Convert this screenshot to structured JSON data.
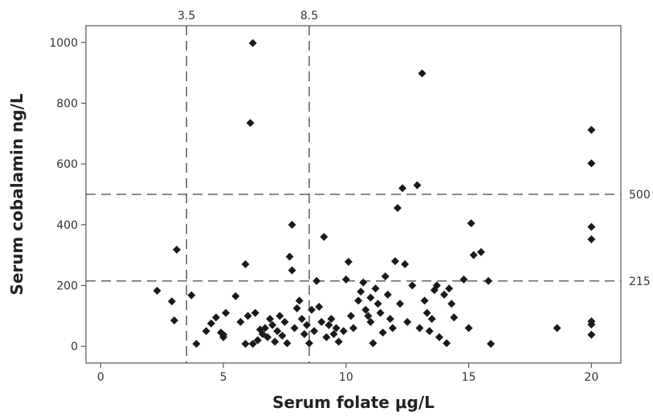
{
  "chart_data": {
    "type": "scatter",
    "title": "",
    "xlabel": "Serum folate μg/L",
    "ylabel": "Serum cobalamin ng/L",
    "xlim": [
      -0.6,
      21.2
    ],
    "ylim": [
      -55,
      1055
    ],
    "xticks": [
      0,
      5,
      10,
      15,
      20
    ],
    "yticks": [
      0,
      200,
      400,
      600,
      800,
      1000
    ],
    "xtick_labels": [
      "0",
      "5",
      "10",
      "15",
      "20"
    ],
    "ytick_labels": [
      "0",
      "200",
      "400",
      "600",
      "800",
      "1000"
    ],
    "reference_lines": {
      "vertical": [
        {
          "value": 3.5,
          "label": "3.5"
        },
        {
          "value": 8.5,
          "label": "8.5"
        }
      ],
      "horizontal": [
        {
          "value": 500,
          "label": "500"
        },
        {
          "value": 215,
          "label": "215"
        }
      ]
    },
    "grid": false,
    "marker": "diamond",
    "marker_color": "#1a1a1a",
    "points": [
      {
        "x": 2.3,
        "y": 183
      },
      {
        "x": 2.9,
        "y": 148
      },
      {
        "x": 3.0,
        "y": 85
      },
      {
        "x": 3.1,
        "y": 318
      },
      {
        "x": 3.7,
        "y": 168
      },
      {
        "x": 3.9,
        "y": 8
      },
      {
        "x": 4.3,
        "y": 50
      },
      {
        "x": 4.5,
        "y": 75
      },
      {
        "x": 4.7,
        "y": 95
      },
      {
        "x": 4.9,
        "y": 45
      },
      {
        "x": 5.0,
        "y": 30
      },
      {
        "x": 5.0,
        "y": 38
      },
      {
        "x": 5.1,
        "y": 110
      },
      {
        "x": 5.5,
        "y": 165
      },
      {
        "x": 5.7,
        "y": 80
      },
      {
        "x": 5.9,
        "y": 8
      },
      {
        "x": 5.9,
        "y": 270
      },
      {
        "x": 6.0,
        "y": 100
      },
      {
        "x": 6.1,
        "y": 735
      },
      {
        "x": 6.2,
        "y": 998
      },
      {
        "x": 6.2,
        "y": 8
      },
      {
        "x": 6.3,
        "y": 110
      },
      {
        "x": 6.4,
        "y": 20
      },
      {
        "x": 6.5,
        "y": 55
      },
      {
        "x": 6.6,
        "y": 40
      },
      {
        "x": 6.7,
        "y": 60
      },
      {
        "x": 6.8,
        "y": 30
      },
      {
        "x": 6.9,
        "y": 90
      },
      {
        "x": 7.0,
        "y": 70
      },
      {
        "x": 7.1,
        "y": 15
      },
      {
        "x": 7.2,
        "y": 50
      },
      {
        "x": 7.3,
        "y": 100
      },
      {
        "x": 7.4,
        "y": 35
      },
      {
        "x": 7.5,
        "y": 80
      },
      {
        "x": 7.6,
        "y": 10
      },
      {
        "x": 7.7,
        "y": 295
      },
      {
        "x": 7.8,
        "y": 400
      },
      {
        "x": 7.8,
        "y": 250
      },
      {
        "x": 7.9,
        "y": 60
      },
      {
        "x": 8.0,
        "y": 125
      },
      {
        "x": 8.1,
        "y": 150
      },
      {
        "x": 8.2,
        "y": 90
      },
      {
        "x": 8.3,
        "y": 40
      },
      {
        "x": 8.4,
        "y": 70
      },
      {
        "x": 8.5,
        "y": 10
      },
      {
        "x": 8.6,
        "y": 120
      },
      {
        "x": 8.7,
        "y": 50
      },
      {
        "x": 8.8,
        "y": 215
      },
      {
        "x": 8.9,
        "y": 130
      },
      {
        "x": 9.0,
        "y": 80
      },
      {
        "x": 9.1,
        "y": 360
      },
      {
        "x": 9.2,
        "y": 30
      },
      {
        "x": 9.3,
        "y": 70
      },
      {
        "x": 9.4,
        "y": 90
      },
      {
        "x": 9.5,
        "y": 40
      },
      {
        "x": 9.6,
        "y": 60
      },
      {
        "x": 9.7,
        "y": 15
      },
      {
        "x": 9.9,
        "y": 50
      },
      {
        "x": 10.0,
        "y": 220
      },
      {
        "x": 10.1,
        "y": 278
      },
      {
        "x": 10.2,
        "y": 100
      },
      {
        "x": 10.3,
        "y": 60
      },
      {
        "x": 10.5,
        "y": 150
      },
      {
        "x": 10.6,
        "y": 180
      },
      {
        "x": 10.7,
        "y": 210
      },
      {
        "x": 10.8,
        "y": 120
      },
      {
        "x": 10.9,
        "y": 100
      },
      {
        "x": 11.0,
        "y": 80
      },
      {
        "x": 11.0,
        "y": 160
      },
      {
        "x": 11.1,
        "y": 10
      },
      {
        "x": 11.2,
        "y": 190
      },
      {
        "x": 11.3,
        "y": 140
      },
      {
        "x": 11.4,
        "y": 110
      },
      {
        "x": 11.5,
        "y": 45
      },
      {
        "x": 11.6,
        "y": 230
      },
      {
        "x": 11.7,
        "y": 170
      },
      {
        "x": 11.8,
        "y": 90
      },
      {
        "x": 11.9,
        "y": 60
      },
      {
        "x": 12.0,
        "y": 280
      },
      {
        "x": 12.1,
        "y": 455
      },
      {
        "x": 12.2,
        "y": 140
      },
      {
        "x": 12.3,
        "y": 520
      },
      {
        "x": 12.4,
        "y": 270
      },
      {
        "x": 12.5,
        "y": 80
      },
      {
        "x": 12.7,
        "y": 200
      },
      {
        "x": 12.9,
        "y": 530
      },
      {
        "x": 13.0,
        "y": 60
      },
      {
        "x": 13.1,
        "y": 898
      },
      {
        "x": 13.2,
        "y": 150
      },
      {
        "x": 13.3,
        "y": 110
      },
      {
        "x": 13.4,
        "y": 50
      },
      {
        "x": 13.5,
        "y": 90
      },
      {
        "x": 13.6,
        "y": 185
      },
      {
        "x": 13.7,
        "y": 200
      },
      {
        "x": 13.8,
        "y": 30
      },
      {
        "x": 14.0,
        "y": 170
      },
      {
        "x": 14.1,
        "y": 10
      },
      {
        "x": 14.2,
        "y": 190
      },
      {
        "x": 14.3,
        "y": 140
      },
      {
        "x": 14.4,
        "y": 95
      },
      {
        "x": 14.8,
        "y": 220
      },
      {
        "x": 15.0,
        "y": 60
      },
      {
        "x": 15.1,
        "y": 405
      },
      {
        "x": 15.2,
        "y": 300
      },
      {
        "x": 15.5,
        "y": 310
      },
      {
        "x": 15.8,
        "y": 215
      },
      {
        "x": 15.9,
        "y": 8
      },
      {
        "x": 18.6,
        "y": 60
      },
      {
        "x": 20.0,
        "y": 712
      },
      {
        "x": 20.0,
        "y": 602
      },
      {
        "x": 20.0,
        "y": 393
      },
      {
        "x": 20.0,
        "y": 352
      },
      {
        "x": 20.0,
        "y": 82
      },
      {
        "x": 20.0,
        "y": 72
      },
      {
        "x": 20.0,
        "y": 38
      }
    ]
  }
}
